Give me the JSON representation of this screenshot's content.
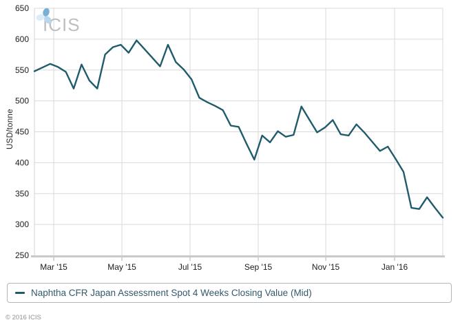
{
  "brand": {
    "logo_text": "ICIS"
  },
  "chart_data": {
    "type": "line",
    "title": "",
    "xlabel": "",
    "ylabel": "USD/tonne",
    "ylim": [
      250,
      650
    ],
    "y_ticks": [
      250,
      300,
      350,
      400,
      450,
      500,
      550,
      600,
      650
    ],
    "x_tick_labels": [
      "Mar '15",
      "May '15",
      "Jul '15",
      "Sep '15",
      "Nov '15",
      "Jan '16"
    ],
    "x_tick_indices": [
      2.46,
      11.14,
      19.82,
      28.5,
      37.1,
      45.86
    ],
    "grid": true,
    "legend_position": "bottom",
    "series": [
      {
        "name": "Naphtha CFR Japan Assessment Spot 4 Weeks Closing Value (Mid)",
        "color": "#1f5b6b",
        "values": [
          548,
          554,
          560,
          555,
          547,
          520,
          559,
          533,
          520,
          575,
          587,
          591,
          578,
          598,
          584,
          570,
          556,
          591,
          563,
          551,
          535,
          505,
          498,
          492,
          485,
          460,
          458,
          431,
          405,
          444,
          433,
          451,
          442,
          445,
          491,
          470,
          449,
          457,
          469,
          446,
          444,
          462,
          449,
          434,
          419,
          426,
          406,
          385,
          327,
          325,
          344,
          327,
          311
        ]
      }
    ]
  },
  "legend": {
    "series_label": "Naphtha CFR Japan Assessment Spot 4 Weeks Closing Value (Mid)"
  },
  "footer": {
    "copyright": "© 2016 ICIS"
  },
  "colors": {
    "line": "#1f5b6b",
    "grid": "#d9d9d9",
    "axis_bottom": "#c6cacd",
    "axis_left": "#ccd5db",
    "tick_mark": "#a9b1b7",
    "tick_text": "#1b1b1b",
    "legend_text": "#33596b",
    "legend_border": "#adb8c0",
    "logo_gray": "#bcbfc2",
    "logo_blue_mid": "#79b0d6",
    "logo_blue_light": "#b9d7ec",
    "logo_blue_pale": "#dcecf6"
  }
}
